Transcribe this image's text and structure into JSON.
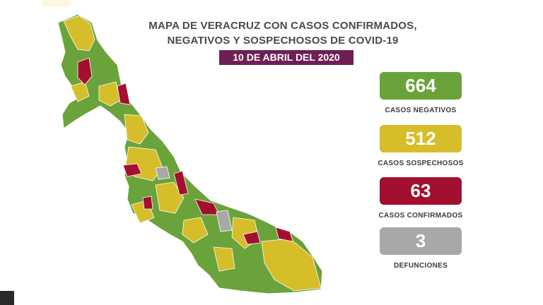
{
  "title_line1": "MAPA DE VERACRUZ CON CASOS CONFIRMADOS,",
  "title_line2": "NEGATIVOS Y SOSPECHOSOS DE COVID-19",
  "date": "10 DE ABRIL DEL 2020",
  "stats": {
    "negativos": {
      "value": "664",
      "label": "CASOS NEGATIVOS",
      "color": "#6aa33a"
    },
    "sospechosos": {
      "value": "512",
      "label": "CASOS SOSPECHOSOS",
      "color": "#d6bd2a"
    },
    "confirmados": {
      "value": "63",
      "label": "CASOS CONFIRMADOS",
      "color": "#a3102f"
    },
    "defunciones": {
      "value": "3",
      "label": "DEFUNCIONES",
      "color": "#a8a8a8"
    }
  },
  "map_colors": {
    "green": "#6aa33a",
    "yellow": "#d6bd2a",
    "red": "#a3102f",
    "gray": "#a8a8a8"
  }
}
